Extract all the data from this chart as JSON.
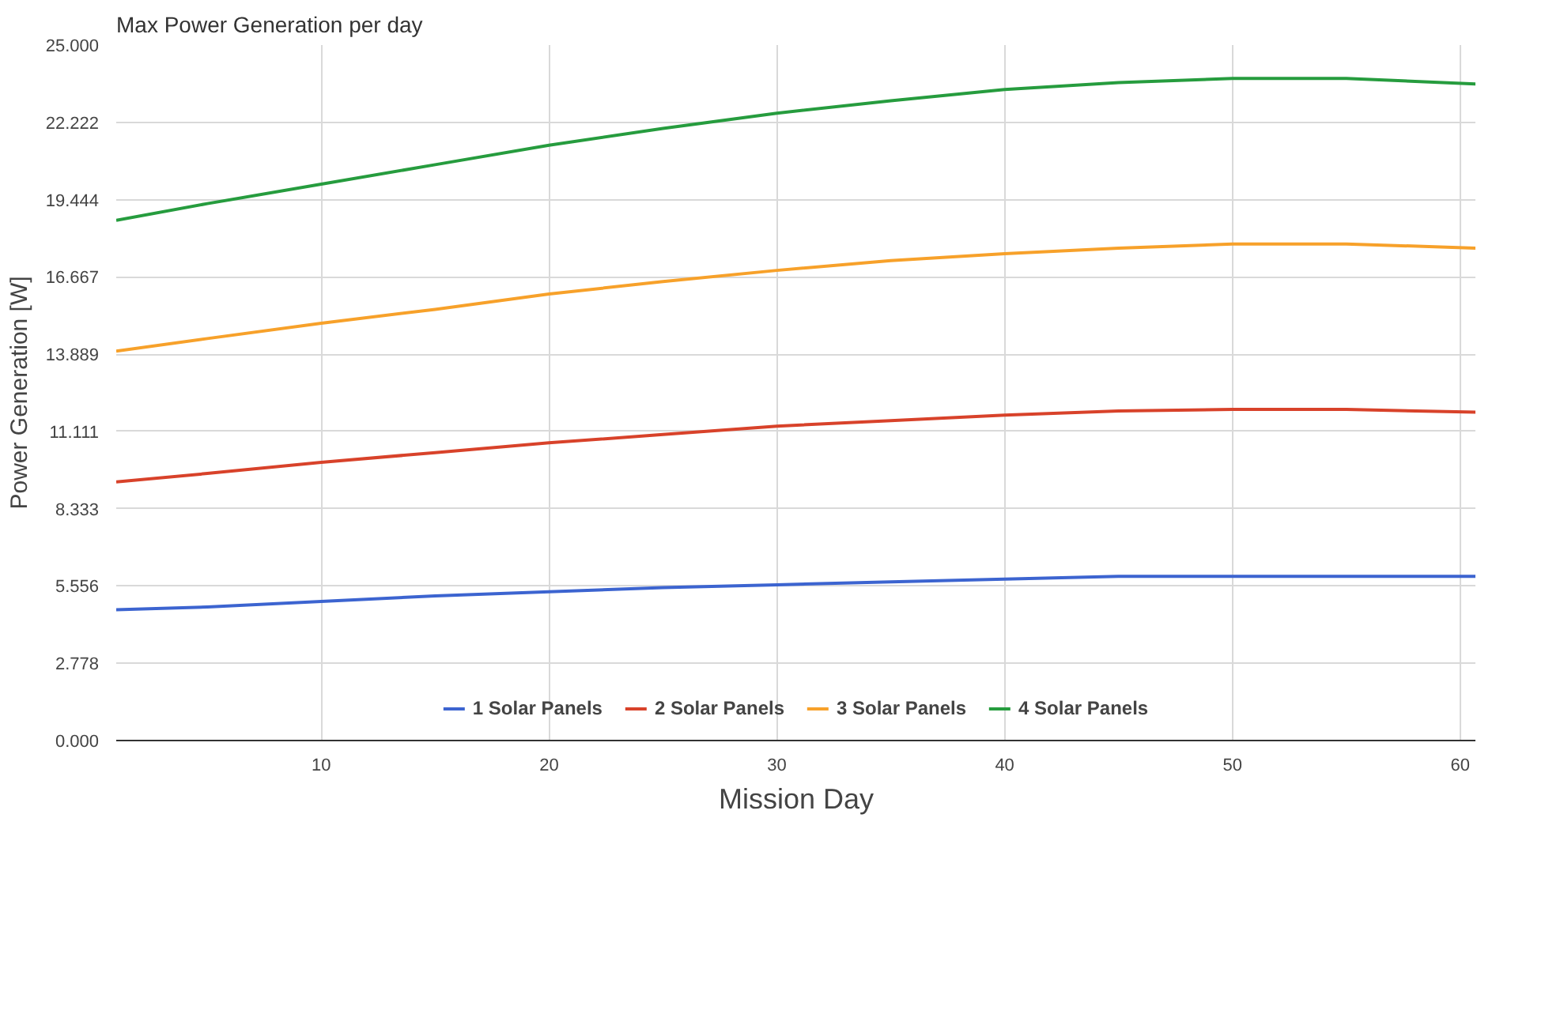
{
  "chart_data": {
    "type": "line",
    "title": "Max Power Generation per day",
    "xlabel": "Mission Day",
    "ylabel": "Power Generation [W]",
    "x": [
      1,
      5,
      10,
      15,
      20,
      25,
      30,
      35,
      40,
      45,
      50,
      55,
      60.7
    ],
    "series": [
      {
        "name": "1 Solar Panels",
        "color": "#3c64d0",
        "values": [
          4.7,
          4.8,
          5.0,
          5.2,
          5.35,
          5.5,
          5.6,
          5.7,
          5.8,
          5.9,
          5.9,
          5.9,
          5.9
        ]
      },
      {
        "name": "2 Solar Panels",
        "color": "#d8422a",
        "values": [
          9.3,
          9.6,
          10.0,
          10.35,
          10.7,
          11.0,
          11.3,
          11.5,
          11.7,
          11.85,
          11.9,
          11.9,
          11.8
        ]
      },
      {
        "name": "3 Solar Panels",
        "color": "#f7a12a",
        "values": [
          14.0,
          14.45,
          15.0,
          15.5,
          16.05,
          16.5,
          16.9,
          17.25,
          17.5,
          17.7,
          17.85,
          17.85,
          17.7
        ]
      },
      {
        "name": "4 Solar Panels",
        "color": "#269c3e",
        "values": [
          18.7,
          19.3,
          20.0,
          20.7,
          21.4,
          22.0,
          22.55,
          23.0,
          23.4,
          23.65,
          23.8,
          23.8,
          23.6
        ]
      }
    ],
    "xlim": [
      1,
      60.7
    ],
    "ylim": [
      0,
      25
    ],
    "xticks": [
      10,
      20,
      30,
      40,
      50,
      60
    ],
    "yticks": [
      {
        "value": 0,
        "label": "0.000"
      },
      {
        "value": 2.778,
        "label": "2.778"
      },
      {
        "value": 5.556,
        "label": "5.556"
      },
      {
        "value": 8.333,
        "label": "8.333"
      },
      {
        "value": 11.111,
        "label": "11.111"
      },
      {
        "value": 13.889,
        "label": "13.889"
      },
      {
        "value": 16.667,
        "label": "16.667"
      },
      {
        "value": 19.444,
        "label": "19.444"
      },
      {
        "value": 22.222,
        "label": "22.222"
      },
      {
        "value": 25,
        "label": "25.000"
      }
    ],
    "grid": true,
    "legend": "bottom",
    "marker": "none",
    "line_style": "solid"
  }
}
